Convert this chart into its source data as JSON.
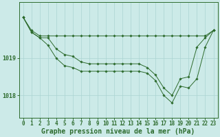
{
  "title": "Graphe pression niveau de la mer (hPa)",
  "background_color": "#cceae8",
  "grid_color": "#aad4d2",
  "line_color": "#2d6b2d",
  "x_labels": [
    "0",
    "1",
    "2",
    "3",
    "4",
    "5",
    "6",
    "7",
    "8",
    "9",
    "10",
    "11",
    "12",
    "13",
    "14",
    "15",
    "16",
    "17",
    "18",
    "19",
    "20",
    "21",
    "22",
    "23"
  ],
  "series1": [
    1020.1,
    1019.75,
    1019.6,
    1019.6,
    1019.6,
    1019.6,
    1019.6,
    1019.6,
    1019.6,
    1019.6,
    1019.6,
    1019.6,
    1019.6,
    1019.6,
    1019.6,
    1019.6,
    1019.6,
    1019.6,
    1019.6,
    1019.6,
    1019.6,
    1019.6,
    1019.6,
    1019.75
  ],
  "series2": [
    1020.1,
    1019.7,
    1019.55,
    1019.55,
    1019.25,
    1019.1,
    1019.05,
    1018.9,
    1018.85,
    1018.85,
    1018.85,
    1018.85,
    1018.85,
    1018.85,
    1018.85,
    1018.75,
    1018.55,
    1018.2,
    1018.0,
    1018.45,
    1018.5,
    1019.3,
    1019.55,
    1019.75
  ],
  "series3": [
    1020.1,
    1019.7,
    1019.55,
    1019.35,
    1019.0,
    1018.8,
    1018.75,
    1018.65,
    1018.65,
    1018.65,
    1018.65,
    1018.65,
    1018.65,
    1018.65,
    1018.65,
    1018.6,
    1018.4,
    1018.0,
    1017.8,
    1018.25,
    1018.2,
    1018.45,
    1019.3,
    1019.75
  ],
  "ylim": [
    1017.4,
    1020.5
  ],
  "yticks": [
    1018.0,
    1019.0
  ],
  "ytick_labels": [
    "1018",
    "1019"
  ],
  "figsize": [
    3.2,
    2.0
  ],
  "dpi": 100,
  "title_fontsize": 7.0,
  "tick_fontsize": 5.5
}
